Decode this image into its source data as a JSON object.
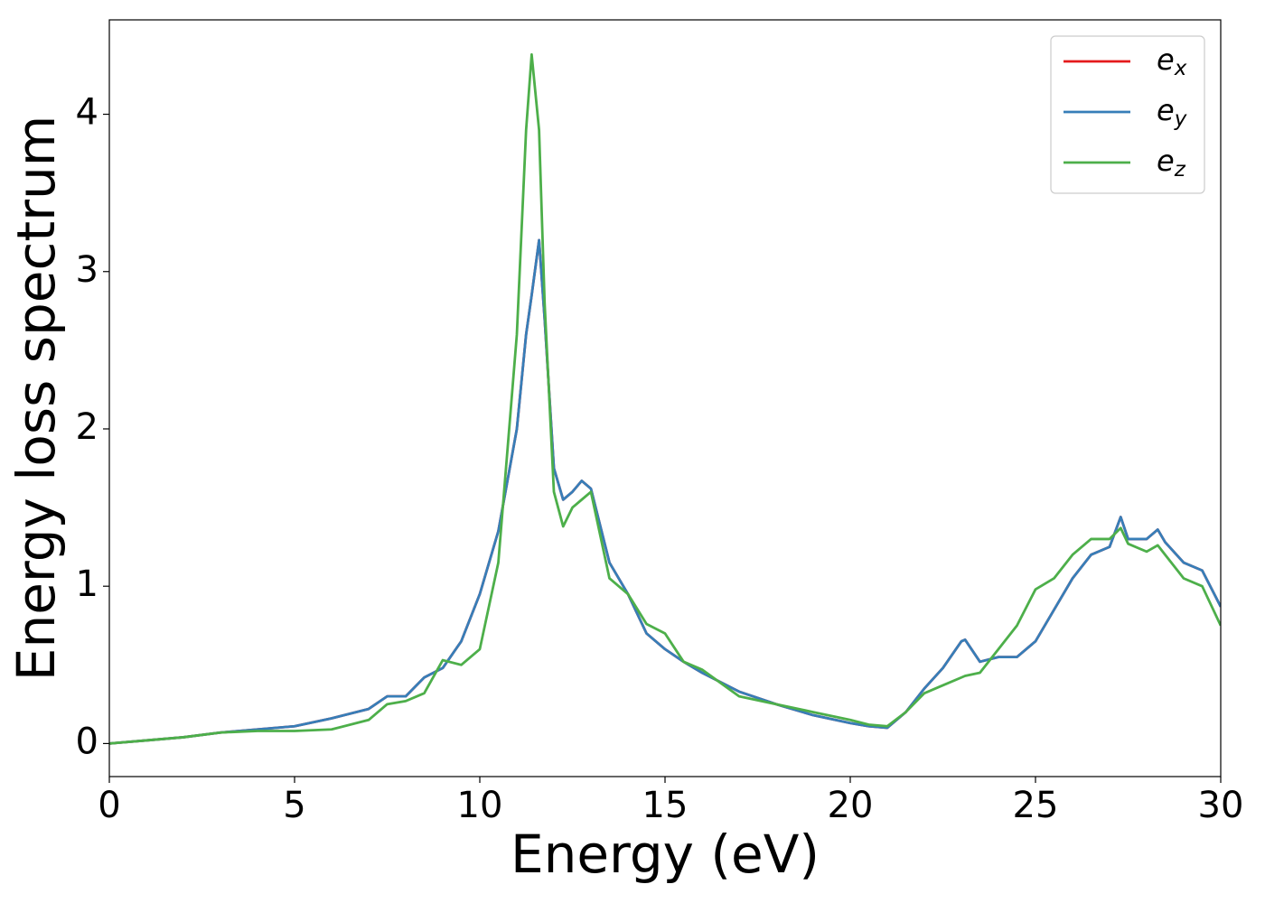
{
  "chart_data": {
    "type": "line",
    "x_label": "Energy (eV)",
    "y_label": "Energy loss spectrum",
    "x": [
      0,
      1,
      2,
      3,
      4,
      5,
      6,
      7,
      7.5,
      8,
      8.5,
      9,
      9.5,
      10,
      10.5,
      11,
      11.25,
      11.4,
      11.6,
      11.75,
      12,
      12.25,
      12.5,
      12.75,
      13,
      13.5,
      14,
      14.5,
      15,
      15.5,
      16,
      17,
      18,
      19,
      20,
      20.5,
      21,
      21.5,
      22,
      22.5,
      23,
      23.1,
      23.5,
      24,
      24.5,
      25,
      25.5,
      26,
      26.5,
      27,
      27.3,
      27.5,
      28,
      28.3,
      28.5,
      29,
      29.5,
      30
    ],
    "series": [
      {
        "name": "e_x",
        "color": "#e41a1c",
        "values": [
          0,
          0.02,
          0.04,
          0.07,
          0.09,
          0.11,
          0.16,
          0.22,
          0.3,
          0.3,
          0.42,
          0.48,
          0.65,
          0.95,
          1.35,
          2.0,
          2.6,
          2.85,
          3.2,
          2.7,
          1.75,
          1.55,
          1.6,
          1.67,
          1.62,
          1.15,
          0.95,
          0.7,
          0.6,
          0.52,
          0.45,
          0.33,
          0.25,
          0.18,
          0.13,
          0.11,
          0.1,
          0.2,
          0.35,
          0.48,
          0.65,
          0.66,
          0.52,
          0.55,
          0.55,
          0.65,
          0.85,
          1.05,
          1.2,
          1.25,
          1.44,
          1.3,
          1.3,
          1.36,
          1.28,
          1.15,
          1.1,
          0.87
        ]
      },
      {
        "name": "e_y",
        "color": "#377eb8",
        "values": [
          0,
          0.02,
          0.04,
          0.07,
          0.09,
          0.11,
          0.16,
          0.22,
          0.3,
          0.3,
          0.42,
          0.48,
          0.65,
          0.95,
          1.35,
          2.0,
          2.6,
          2.85,
          3.2,
          2.7,
          1.75,
          1.55,
          1.6,
          1.67,
          1.62,
          1.15,
          0.95,
          0.7,
          0.6,
          0.52,
          0.45,
          0.33,
          0.25,
          0.18,
          0.13,
          0.11,
          0.1,
          0.2,
          0.35,
          0.48,
          0.65,
          0.66,
          0.52,
          0.55,
          0.55,
          0.65,
          0.85,
          1.05,
          1.2,
          1.25,
          1.44,
          1.3,
          1.3,
          1.36,
          1.28,
          1.15,
          1.1,
          0.87
        ]
      },
      {
        "name": "e_z",
        "color": "#4daf4a",
        "values": [
          0,
          0.02,
          0.04,
          0.07,
          0.08,
          0.08,
          0.09,
          0.15,
          0.25,
          0.27,
          0.32,
          0.53,
          0.5,
          0.6,
          1.15,
          2.6,
          3.9,
          4.38,
          3.9,
          2.8,
          1.6,
          1.38,
          1.5,
          1.55,
          1.6,
          1.05,
          0.95,
          0.76,
          0.7,
          0.52,
          0.47,
          0.3,
          0.25,
          0.2,
          0.15,
          0.12,
          0.11,
          0.2,
          0.32,
          0.37,
          0.42,
          0.43,
          0.45,
          0.6,
          0.75,
          0.98,
          1.05,
          1.2,
          1.3,
          1.3,
          1.37,
          1.27,
          1.22,
          1.26,
          1.2,
          1.05,
          1.0,
          0.75
        ]
      }
    ],
    "xlim": [
      0,
      30
    ],
    "xticks": [
      0,
      5,
      10,
      15,
      20,
      25,
      30
    ],
    "ylim": [
      -0.21,
      4.6
    ],
    "yticks": [
      0,
      1,
      2,
      3,
      4
    ],
    "legend": "upper right",
    "grid": false
  }
}
